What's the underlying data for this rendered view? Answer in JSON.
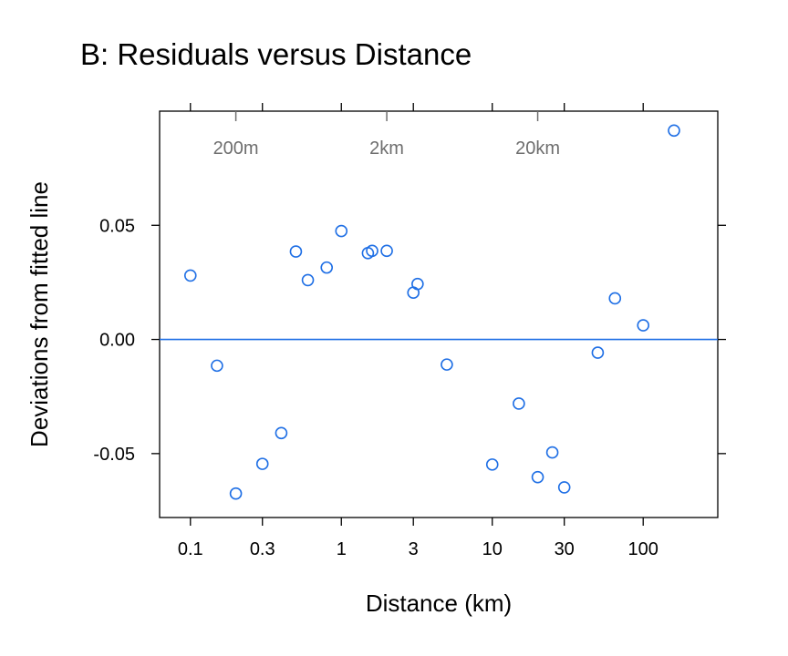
{
  "chart_data": {
    "type": "scatter",
    "title": "B: Residuals versus Distance",
    "xlabel": "Distance (km)",
    "ylabel": "Deviations from fitted line",
    "x_scale": "log10",
    "xlim": [
      0.0625,
      312
    ],
    "ylim": [
      -0.078,
      0.1
    ],
    "x_ticks": [
      {
        "value": 0.1,
        "label": "0.1"
      },
      {
        "value": 0.3,
        "label": "0.3"
      },
      {
        "value": 1,
        "label": "1"
      },
      {
        "value": 3,
        "label": "3"
      },
      {
        "value": 10,
        "label": "10"
      },
      {
        "value": 30,
        "label": "30"
      },
      {
        "value": 100,
        "label": "100"
      }
    ],
    "y_ticks": [
      {
        "value": -0.05,
        "label": "-0.05"
      },
      {
        "value": 0.0,
        "label": "0.00"
      },
      {
        "value": 0.05,
        "label": "0.05"
      }
    ],
    "top_axis_labels": [
      {
        "value": 0.2,
        "label": "200m"
      },
      {
        "value": 2,
        "label": "2km"
      },
      {
        "value": 20,
        "label": "20km"
      }
    ],
    "reference_line_y": 0,
    "grid": false,
    "point_color": "#1f6fe5",
    "points": [
      {
        "x": 0.1,
        "y": 0.028
      },
      {
        "x": 0.15,
        "y": -0.0115
      },
      {
        "x": 0.2,
        "y": -0.0675
      },
      {
        "x": 0.3,
        "y": -0.0545
      },
      {
        "x": 0.4,
        "y": -0.041
      },
      {
        "x": 0.5,
        "y": 0.0385
      },
      {
        "x": 0.6,
        "y": 0.026
      },
      {
        "x": 0.8,
        "y": 0.0315
      },
      {
        "x": 1.0,
        "y": 0.0475
      },
      {
        "x": 1.5,
        "y": 0.0378
      },
      {
        "x": 1.6,
        "y": 0.0388
      },
      {
        "x": 2.0,
        "y": 0.0388
      },
      {
        "x": 3.0,
        "y": 0.0205
      },
      {
        "x": 3.2,
        "y": 0.0243
      },
      {
        "x": 5.0,
        "y": -0.011
      },
      {
        "x": 10,
        "y": -0.0548
      },
      {
        "x": 15,
        "y": -0.0281
      },
      {
        "x": 20,
        "y": -0.0603
      },
      {
        "x": 25,
        "y": -0.0495
      },
      {
        "x": 30,
        "y": -0.0648
      },
      {
        "x": 50,
        "y": -0.0058
      },
      {
        "x": 65,
        "y": 0.018
      },
      {
        "x": 100,
        "y": 0.0062
      },
      {
        "x": 160,
        "y": 0.0915
      }
    ]
  }
}
